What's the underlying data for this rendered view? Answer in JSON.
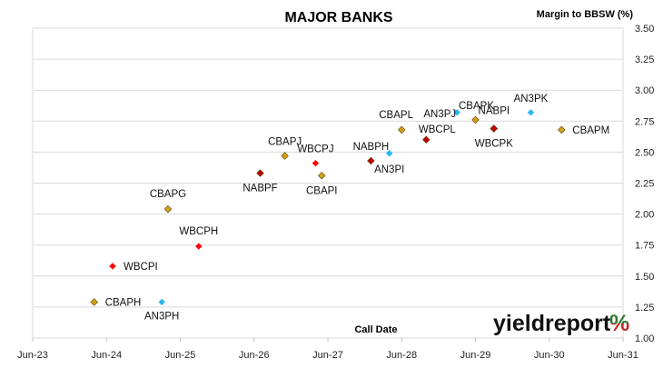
{
  "chart_data": {
    "type": "scatter",
    "title": "MAJOR BANKS",
    "xlabel": "Call Date",
    "ylabel": "Margin to BBSW (%)",
    "x_ticks": [
      "Jun-23",
      "Jun-24",
      "Jun-25",
      "Jun-26",
      "Jun-27",
      "Jun-28",
      "Jun-29",
      "Jun-30",
      "Jun-31"
    ],
    "xlim": [
      "2023-06",
      "2031-06"
    ],
    "y_ticks": [
      "1.00",
      "1.25",
      "1.50",
      "1.75",
      "2.00",
      "2.25",
      "2.50",
      "2.75",
      "3.00",
      "3.25",
      "3.50"
    ],
    "ylim": [
      1.0,
      3.5
    ],
    "y_axis_side": "right",
    "grid": "horizontal",
    "points": [
      {
        "label": "CBAPH",
        "x": "2024-04",
        "y": 1.29,
        "color": "#d4a017",
        "marker": "diamond"
      },
      {
        "label": "WBCPI",
        "x": "2024-07",
        "y": 1.58,
        "color": "#ff0000",
        "marker": "dot"
      },
      {
        "label": "AN3PH",
        "x": "2025-03",
        "y": 1.29,
        "color": "#29b6f6",
        "marker": "dot"
      },
      {
        "label": "CBAPG",
        "x": "2025-04",
        "y": 2.04,
        "color": "#d4a017",
        "marker": "diamond"
      },
      {
        "label": "WBCPH",
        "x": "2025-09",
        "y": 1.74,
        "color": "#ff0000",
        "marker": "dot"
      },
      {
        "label": "NABPF",
        "x": "2026-07",
        "y": 2.33,
        "color": "#c00000",
        "marker": "diamond"
      },
      {
        "label": "CBAPJ",
        "x": "2026-11",
        "y": 2.47,
        "color": "#d4a017",
        "marker": "diamond"
      },
      {
        "label": "WBCPJ",
        "x": "2027-04",
        "y": 2.41,
        "color": "#ff0000",
        "marker": "dot"
      },
      {
        "label": "CBAPI",
        "x": "2027-05",
        "y": 2.31,
        "color": "#d4a017",
        "marker": "diamond"
      },
      {
        "label": "NABPH",
        "x": "2028-01",
        "y": 2.43,
        "color": "#c00000",
        "marker": "diamond"
      },
      {
        "label": "AN3PI",
        "x": "2028-04",
        "y": 2.49,
        "color": "#29b6f6",
        "marker": "dot"
      },
      {
        "label": "CBAPL",
        "x": "2028-06",
        "y": 2.68,
        "color": "#d4a017",
        "marker": "diamond"
      },
      {
        "label": "WBCPL",
        "x": "2028-10",
        "y": 2.6,
        "color": "#c00000",
        "marker": "diamond"
      },
      {
        "label": "AN3PJ",
        "x": "2029-03",
        "y": 2.82,
        "color": "#29b6f6",
        "marker": "dot"
      },
      {
        "label": "CBAPK",
        "x": "2029-06",
        "y": 2.76,
        "color": "#d4a017",
        "marker": "diamond"
      },
      {
        "label": "NABPI",
        "x": "2029-09",
        "y": 2.69,
        "color": "#c00000",
        "marker": "diamond"
      },
      {
        "label": "WBCPK",
        "x": "2029-09",
        "y": 2.69,
        "color": "#c00000",
        "marker": "diamond"
      },
      {
        "label": "AN3PK",
        "x": "2030-03",
        "y": 2.82,
        "color": "#29b6f6",
        "marker": "dot"
      },
      {
        "label": "CBAPM",
        "x": "2030-08",
        "y": 2.68,
        "color": "#d4a017",
        "marker": "diamond"
      }
    ]
  },
  "brand": {
    "name": "yieldreport",
    "symbol": "%",
    "color_main": "#111111",
    "color_pct_top": "#2e7d32",
    "color_pct_bottom": "#c62828"
  }
}
